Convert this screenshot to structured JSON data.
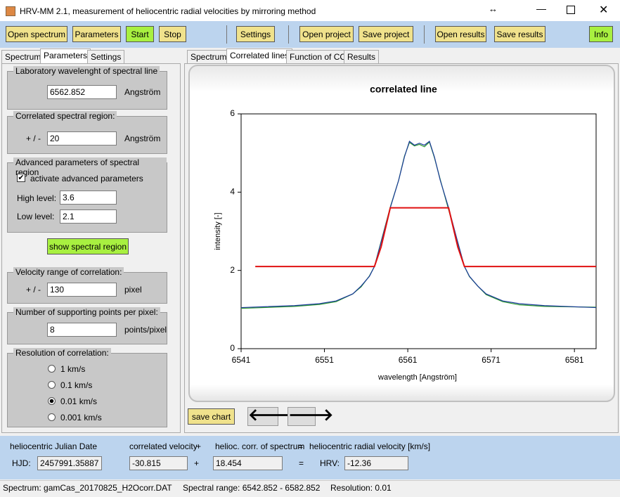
{
  "window": {
    "title": "HRV-MM 2.1,   measurement of heliocentric radial velocities by mirroring method"
  },
  "toolbar": [
    "Open spectrum",
    "Parameters",
    "Start",
    "Stop",
    "Settings",
    "Open project",
    "Save project",
    "Open results",
    "Save results",
    "Info"
  ],
  "left_tabs": [
    "Spectrum",
    "Parameters",
    "Settings"
  ],
  "parameters": {
    "lab_wavelength": {
      "caption": "Laboratory wavelenght of spectral line",
      "value": "6562.852",
      "unit": "Angström"
    },
    "region": {
      "caption": "Correlated spectral region:",
      "prefix": "+ / -",
      "value": "20",
      "unit": "Angström"
    },
    "advanced": {
      "caption": "Advanced parameters of spectral region",
      "checkbox": "activate advanced parameters",
      "high_label": "High level:",
      "high": "3.6",
      "low_label": "Low level:",
      "low": "2.1"
    },
    "show_button": "show spectral region",
    "velocity": {
      "caption": "Velocity range of correlation:",
      "prefix": "+ / -",
      "value": "130",
      "unit": "pixel"
    },
    "points": {
      "caption": "Number of supporting points per pixel:",
      "value": "8",
      "unit": "points/pixel"
    },
    "resolution": {
      "caption": "Resolution of correlation:",
      "options": [
        "1 km/s",
        "0.1 km/s",
        "0.01 km/s",
        "0.001 km/s"
      ]
    }
  },
  "right_tabs": [
    "Spectrum",
    "Correlated lines",
    "Function of CC",
    "Results"
  ],
  "chart_data": {
    "type": "line",
    "title": "correlated line",
    "x_label": "wavelength [Angström]",
    "y_label": "intensity [-]",
    "xlim": [
      6541,
      6583.6
    ],
    "ylim": [
      0,
      6
    ],
    "xticks": [
      6541,
      6551,
      6561,
      6571,
      6581
    ],
    "yticks": [
      0,
      2,
      4,
      6
    ],
    "series": [
      {
        "color": "#2e9a2e",
        "x": [
          6541,
          6547.4,
          6550.4,
          6552.4,
          6554.4,
          6555.4,
          6556.4,
          6557,
          6557.9,
          6558.9,
          6559.9,
          6560.6,
          6561.2,
          6561.8,
          6562.4,
          6563,
          6563.6,
          6564.2,
          6564.9,
          6565.9,
          6566.9,
          6567.8,
          6568.4,
          6569.4,
          6570.4,
          6572.4,
          6574.4,
          6577.4,
          6583.6
        ],
        "values": [
          1.03,
          1.08,
          1.13,
          1.2,
          1.4,
          1.58,
          1.86,
          2.1,
          2.82,
          3.62,
          4.3,
          4.92,
          5.27,
          5.18,
          5.22,
          5.16,
          5.28,
          4.88,
          4.32,
          3.55,
          2.78,
          2.1,
          1.84,
          1.6,
          1.38,
          1.2,
          1.12,
          1.08,
          1.06
        ]
      },
      {
        "color": "#1a3a9a",
        "x": [
          6541,
          6547.4,
          6550.4,
          6552.4,
          6554.4,
          6555.4,
          6556.4,
          6557,
          6557.9,
          6558.9,
          6559.9,
          6560.6,
          6561.2,
          6561.8,
          6562.4,
          6563,
          6563.6,
          6564.2,
          6564.9,
          6565.9,
          6566.9,
          6567.8,
          6568.4,
          6569.4,
          6570.4,
          6572.4,
          6574.4,
          6577.4,
          6583.6
        ],
        "values": [
          1.05,
          1.1,
          1.15,
          1.22,
          1.4,
          1.6,
          1.85,
          2.1,
          2.8,
          3.6,
          4.3,
          4.9,
          5.3,
          5.2,
          5.25,
          5.2,
          5.3,
          4.9,
          4.3,
          3.6,
          2.8,
          2.1,
          1.85,
          1.6,
          1.4,
          1.22,
          1.15,
          1.1,
          1.05
        ]
      },
      {
        "color": "#e01010",
        "x": [
          6542.7,
          6557,
          6557.8,
          6558.9,
          6565.9,
          6567,
          6567.8,
          6583.6
        ],
        "values": [
          2.1,
          2.1,
          2.6,
          3.6,
          3.6,
          2.6,
          2.1,
          2.1
        ]
      }
    ]
  },
  "save_chart": "save chart",
  "results": {
    "hjd_caption": "heliocentric Julian Date",
    "vel_caption": "correlated velocity",
    "plus1": "+",
    "corr_caption": "helioc. corr. of spectrum",
    "eq1": "=",
    "hrv_caption": "heliocentric radial velocity [km/s]",
    "hjd_label": "HJD:",
    "hjd": "2457991.35887",
    "velocity": "-30.815",
    "plus2": "+",
    "correction": "18.454",
    "eq2": "=",
    "hrv_label": "HRV:",
    "hrv": "-12.36"
  },
  "status": {
    "spectrum": "Spectrum:  gamCas_20170825_H2Ocorr.DAT",
    "range": "Spectral range:  6542.852 - 6582.852",
    "resolution": "Resolution:  0.01"
  }
}
